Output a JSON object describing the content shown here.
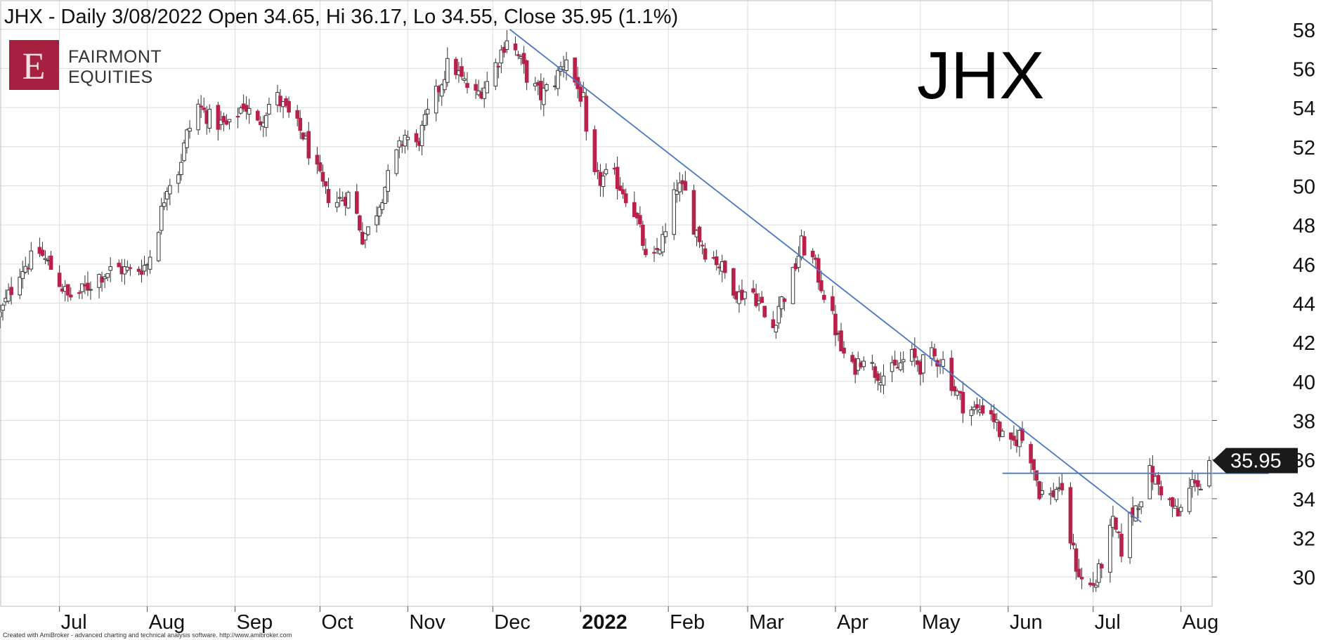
{
  "title": "JHX - Daily 3/08/2022 Open 34.65, Hi 36.17, Lo 34.55, Close 35.95 (1.1%)",
  "ticker_label": "JHX",
  "logo": {
    "letter": "E",
    "line1": "FAIRMONT",
    "line2": "EQUITIES",
    "color": "#a8203f"
  },
  "footer": "Created with AmiBroker - advanced charting and technical analysis software. http://www.amibroker.com",
  "colors": {
    "up_fill": "#ffffff",
    "down_fill": "#b8214a",
    "trendline": "#4a78c2",
    "grid": "#dcdcdc",
    "price_label_bg": "#1a1a1a"
  },
  "chart_data": {
    "type": "candlestick",
    "title": "JHX - Daily 3/08/2022 Open 34.65, Hi 36.17, Lo 34.55, Close 35.95 (1.1%)",
    "ylim": [
      28.5,
      59.5
    ],
    "yticks": [
      30,
      32,
      34,
      36,
      38,
      40,
      42,
      44,
      46,
      48,
      50,
      52,
      54,
      56,
      58
    ],
    "x_range_days": [
      -21,
      407
    ],
    "x_months": [
      {
        "label": "Jul",
        "day": 0,
        "year": false
      },
      {
        "label": "Aug",
        "day": 31,
        "year": false
      },
      {
        "label": "Sep",
        "day": 62,
        "year": false
      },
      {
        "label": "Oct",
        "day": 92,
        "year": false
      },
      {
        "label": "Nov",
        "day": 123,
        "year": false
      },
      {
        "label": "Dec",
        "day": 153,
        "year": false
      },
      {
        "label": "2022",
        "day": 184,
        "year": true
      },
      {
        "label": "Feb",
        "day": 215,
        "year": false
      },
      {
        "label": "Mar",
        "day": 243,
        "year": false
      },
      {
        "label": "Apr",
        "day": 274,
        "year": false
      },
      {
        "label": "May",
        "day": 304,
        "year": false
      },
      {
        "label": "Jun",
        "day": 335,
        "year": false
      },
      {
        "label": "Jul",
        "day": 365,
        "year": false
      },
      {
        "label": "Aug",
        "day": 396,
        "year": false
      }
    ],
    "last_close": "35.95",
    "last_ohlc": {
      "open": 34.65,
      "high": 36.17,
      "low": 34.55,
      "close": 35.95
    },
    "price_path": [
      [
        -21,
        43.4
      ],
      [
        -14,
        45.7
      ],
      [
        -7,
        46.6
      ],
      [
        -2,
        45.6
      ],
      [
        3,
        44.3
      ],
      [
        8,
        44.6
      ],
      [
        14,
        45.4
      ],
      [
        20,
        45.8
      ],
      [
        26,
        45.6
      ],
      [
        31,
        46.0
      ],
      [
        35,
        48.0
      ],
      [
        38,
        50.1
      ],
      [
        42,
        50.8
      ],
      [
        45,
        52.6
      ],
      [
        49,
        54.1
      ],
      [
        54,
        53.3
      ],
      [
        60,
        53.0
      ],
      [
        65,
        54.2
      ],
      [
        70,
        53.1
      ],
      [
        76,
        54.7
      ],
      [
        81,
        53.6
      ],
      [
        86,
        52.6
      ],
      [
        90,
        51.0
      ],
      [
        94,
        49.6
      ],
      [
        98,
        49.2
      ],
      [
        103,
        49.6
      ],
      [
        107,
        47.4
      ],
      [
        110,
        47.9
      ],
      [
        114,
        49.6
      ],
      [
        118,
        51.2
      ],
      [
        122,
        52.6
      ],
      [
        126,
        52.0
      ],
      [
        130,
        53.6
      ],
      [
        134,
        55.0
      ],
      [
        138,
        56.5
      ],
      [
        142,
        55.4
      ],
      [
        147,
        54.6
      ],
      [
        151,
        55.3
      ],
      [
        155,
        56.5
      ],
      [
        158,
        57.6
      ],
      [
        162,
        56.6
      ],
      [
        166,
        55.3
      ],
      [
        170,
        54.6
      ],
      [
        175,
        55.4
      ],
      [
        179,
        56.6
      ],
      [
        182,
        55.3
      ],
      [
        185,
        54.3
      ],
      [
        187,
        50.4
      ],
      [
        191,
        50.3
      ],
      [
        195,
        50.6
      ],
      [
        199,
        49.8
      ],
      [
        203,
        48.7
      ],
      [
        206,
        47.1
      ],
      [
        208,
        45.2
      ],
      [
        211,
        46.7
      ],
      [
        214,
        47.5
      ],
      [
        218,
        50.0
      ],
      [
        221,
        49.6
      ],
      [
        224,
        48.0
      ],
      [
        228,
        46.7
      ],
      [
        232,
        46.2
      ],
      [
        236,
        45.3
      ],
      [
        240,
        44.4
      ],
      [
        244,
        44.8
      ],
      [
        248,
        43.8
      ],
      [
        251,
        42.2
      ],
      [
        254,
        43.9
      ],
      [
        258,
        44.9
      ],
      [
        262,
        47.0
      ],
      [
        266,
        46.2
      ],
      [
        270,
        44.5
      ],
      [
        273,
        43.2
      ],
      [
        276,
        41.6
      ],
      [
        280,
        40.6
      ],
      [
        284,
        41.4
      ],
      [
        288,
        40.5
      ],
      [
        292,
        40.3
      ],
      [
        296,
        40.7
      ],
      [
        300,
        41.4
      ],
      [
        304,
        40.8
      ],
      [
        308,
        41.3
      ],
      [
        312,
        41.0
      ],
      [
        316,
        39.6
      ],
      [
        320,
        38.6
      ],
      [
        324,
        38.5
      ],
      [
        328,
        38.8
      ],
      [
        332,
        37.4
      ],
      [
        335,
        36.4
      ],
      [
        339,
        37.3
      ],
      [
        343,
        36.2
      ],
      [
        346,
        34.4
      ],
      [
        350,
        34.1
      ],
      [
        353,
        34.7
      ],
      [
        356,
        32.6
      ],
      [
        359,
        30.6
      ],
      [
        362,
        29.4
      ],
      [
        366,
        29.7
      ],
      [
        369,
        31.3
      ],
      [
        372,
        32.7
      ],
      [
        375,
        31.4
      ],
      [
        378,
        33.0
      ],
      [
        382,
        34.2
      ],
      [
        385,
        35.3
      ],
      [
        389,
        34.5
      ],
      [
        392,
        33.8
      ],
      [
        395,
        33.1
      ],
      [
        398,
        34.1
      ],
      [
        401,
        35.1
      ],
      [
        404,
        34.2
      ],
      [
        407,
        35.4
      ]
    ],
    "trendlines": [
      {
        "name": "downtrend",
        "x1": 159,
        "y1": 58.0,
        "x2": 382,
        "y2": 32.8
      },
      {
        "name": "support",
        "x1": 333,
        "y1": 35.3,
        "x2": 427,
        "y2": 35.3
      }
    ]
  }
}
